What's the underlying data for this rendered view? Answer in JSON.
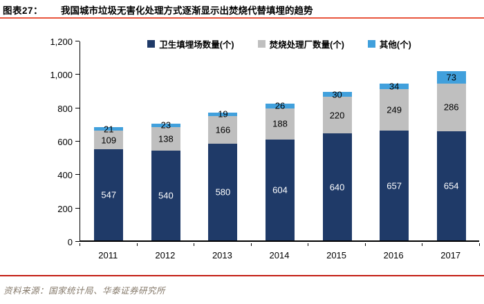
{
  "header": {
    "chart_no": "图表27：",
    "title": "我国城市垃圾无害化处理方式逐渐显示出焚烧代替填埋的趋势"
  },
  "footer": {
    "source": "资料来源：国家统计局、华泰证券研究所"
  },
  "colors": {
    "landfill": "#1f3a68",
    "incineration": "#bfbfbf",
    "other": "#41a0dc",
    "title_rule": "#e8543c",
    "footer_rule": "#c21a10",
    "axis": "#000000"
  },
  "chart_data": {
    "type": "bar",
    "stacked": true,
    "grid": false,
    "legend_position": "top",
    "categories": [
      "2011",
      "2012",
      "2013",
      "2014",
      "2015",
      "2016",
      "2017"
    ],
    "series": [
      {
        "name": "卫生填埋场数量(个)",
        "color_key": "landfill",
        "label_color": "#ffffff",
        "values": [
          547,
          540,
          580,
          604,
          640,
          657,
          654
        ]
      },
      {
        "name": "焚烧处理厂数量(个)",
        "color_key": "incineration",
        "label_color": "#000000",
        "values": [
          109,
          138,
          166,
          188,
          220,
          249,
          286
        ]
      },
      {
        "name": "其他(个)",
        "color_key": "other",
        "label_color": "#000000",
        "values": [
          21,
          23,
          19,
          26,
          30,
          34,
          73
        ]
      }
    ],
    "ylim": [
      0,
      1200
    ],
    "ytick_step": 200,
    "ytick_labels": [
      "0",
      "200",
      "400",
      "600",
      "800",
      "1,000",
      "1,200"
    ]
  }
}
